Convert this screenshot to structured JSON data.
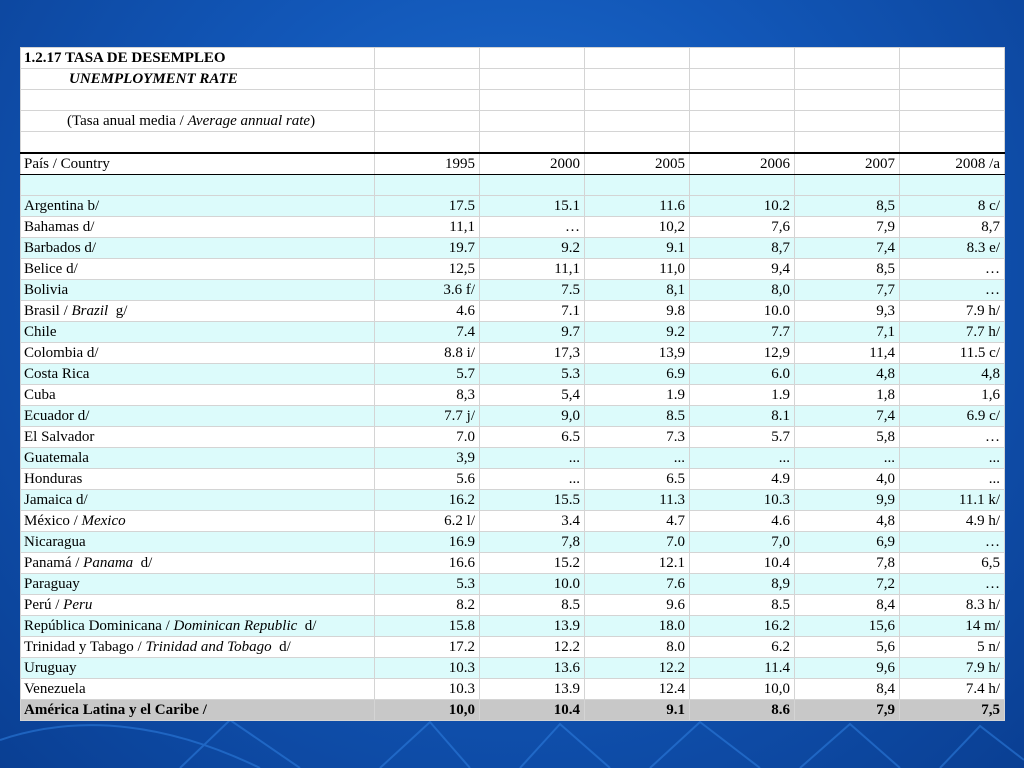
{
  "title": {
    "main": "1.2.17 TASA DE DESEMPLEO",
    "subtitle": "UNEMPLOYMENT RATE",
    "note_pre": "(Tasa anual media / ",
    "note_it": "Average annual rate",
    "note_post": ")"
  },
  "header": {
    "country_label": "País / Country",
    "years": [
      "1995",
      "2000",
      "2005",
      "2006",
      "2007",
      "2008 /a"
    ]
  },
  "rows": [
    {
      "name": "Argentina b/",
      "values": [
        "17.5",
        "15.1",
        "11.6",
        "10.2",
        "8,5",
        "8 c/"
      ]
    },
    {
      "name": "Bahamas d/",
      "values": [
        "11,1",
        "…",
        "10,2",
        "7,6",
        "7,9",
        "8,7"
      ]
    },
    {
      "name": "Barbados d/",
      "values": [
        "19.7",
        "9.2",
        "9.1",
        "8,7",
        "7,4",
        "8.3 e/"
      ]
    },
    {
      "name": "Belice d/",
      "values": [
        "12,5",
        "11,1",
        "11,0",
        "9,4",
        "8,5",
        "…"
      ]
    },
    {
      "name": "Bolivia",
      "values": [
        "3.6 f/",
        "7.5",
        "8,1",
        "8,0",
        "7,7",
        "…"
      ]
    },
    {
      "name": "Brasil / ",
      "name_it": "Brazil",
      "name_post": "  g/",
      "values": [
        "4.6",
        "7.1",
        "9.8",
        "10.0",
        "9,3",
        "7.9 h/"
      ]
    },
    {
      "name": "Chile",
      "values": [
        "7.4",
        "9.7",
        "9.2",
        "7.7",
        "7,1",
        "7.7 h/"
      ]
    },
    {
      "name": "Colombia d/",
      "values": [
        "8.8 i/",
        "17,3",
        "13,9",
        "12,9",
        "11,4",
        "11.5 c/"
      ]
    },
    {
      "name": "Costa Rica",
      "values": [
        "5.7",
        "5.3",
        "6.9",
        "6.0",
        "4,8",
        "4,8"
      ]
    },
    {
      "name": "Cuba",
      "values": [
        "8,3",
        "5,4",
        "1.9",
        "1.9",
        "1,8",
        "1,6"
      ]
    },
    {
      "name": "Ecuador d/",
      "values": [
        "7.7 j/",
        "9,0",
        "8.5",
        "8.1",
        "7,4",
        "6.9 c/"
      ]
    },
    {
      "name": "El Salvador",
      "values": [
        "7.0",
        "6.5",
        "7.3",
        "5.7",
        "5,8",
        "…"
      ]
    },
    {
      "name": "Guatemala",
      "values": [
        "3,9",
        "...",
        "...",
        "...",
        "...",
        "..."
      ]
    },
    {
      "name": "Honduras",
      "values": [
        "5.6",
        "...",
        "6.5",
        "4.9",
        "4,0",
        "..."
      ]
    },
    {
      "name": "Jamaica d/",
      "values": [
        "16.2",
        "15.5",
        "11.3",
        "10.3",
        "9,9",
        "11.1 k/"
      ]
    },
    {
      "name": "México / ",
      "name_it": "Mexico",
      "name_post": "",
      "values": [
        "6.2 l/",
        "3.4",
        "4.7",
        "4.6",
        "4,8",
        "4.9 h/"
      ]
    },
    {
      "name": "Nicaragua",
      "values": [
        "16.9",
        "7,8",
        "7.0",
        "7,0",
        "6,9",
        "…"
      ]
    },
    {
      "name": "Panamá / ",
      "name_it": "Panama",
      "name_post": "  d/",
      "values": [
        "16.6",
        "15.2",
        "12.1",
        "10.4",
        "7,8",
        "6,5"
      ]
    },
    {
      "name": "Paraguay",
      "values": [
        "5.3",
        "10.0",
        "7.6",
        "8,9",
        "7,2",
        "…"
      ]
    },
    {
      "name": "Perú / ",
      "name_it": "Peru",
      "name_post": "",
      "values": [
        "8.2",
        "8.5",
        "9.6",
        "8.5",
        "8,4",
        "8.3 h/"
      ]
    },
    {
      "name": "República Dominicana / ",
      "name_it": "Dominican Republic",
      "name_post": "  d/",
      "values": [
        "15.8",
        "13.9",
        "18.0",
        "16.2",
        "15,6",
        "14 m/"
      ]
    },
    {
      "name": "Trinidad y Tabago / ",
      "name_it": "Trinidad and Tobago",
      "name_post": "  d/",
      "values": [
        "17.2",
        "12.2",
        "8.0",
        "6.2",
        "5,6",
        "5 n/"
      ]
    },
    {
      "name": "Uruguay",
      "values": [
        "10.3",
        "13.6",
        "12.2",
        "11.4",
        "9,6",
        "7.9 h/"
      ]
    },
    {
      "name": "Venezuela",
      "values": [
        "10.3",
        "13.9",
        "12.4",
        "10,0",
        "8,4",
        "7.4 h/"
      ]
    }
  ],
  "total": {
    "name": "América Latina y el Caribe / ",
    "values": [
      "10,0",
      "10.4",
      "9.1",
      "8.6",
      "7,9",
      "7,5"
    ]
  }
}
